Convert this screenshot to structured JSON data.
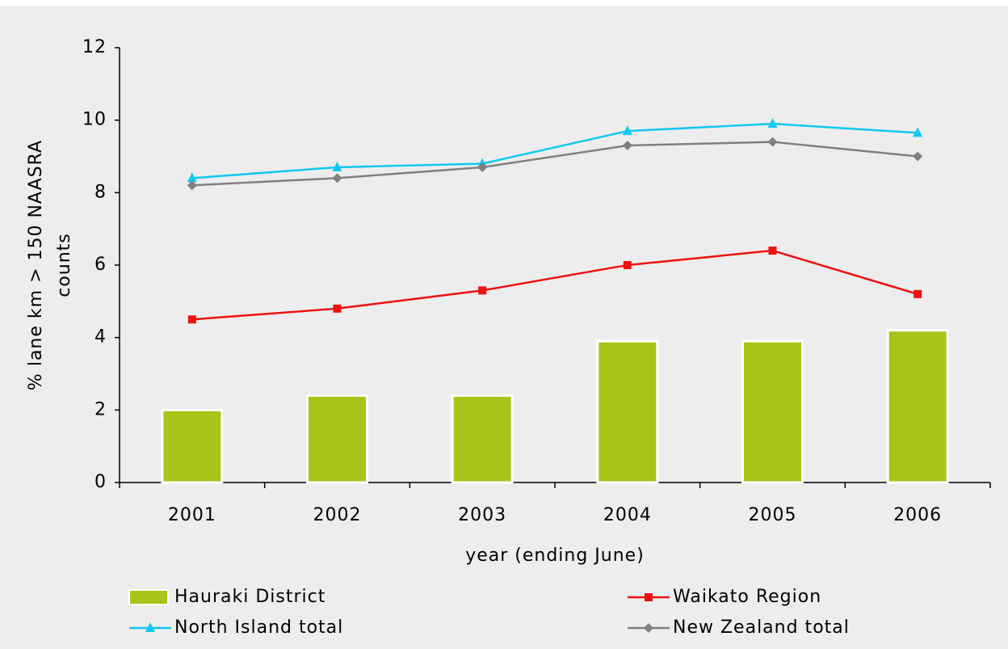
{
  "chart_data": {
    "type": "bar",
    "xlabel": "year (ending June)",
    "ylabel": [
      "% lane km > 150 NAASRA",
      "counts"
    ],
    "categories": [
      "2001",
      "2002",
      "2003",
      "2004",
      "2005",
      "2006"
    ],
    "ylim": [
      0,
      12
    ],
    "yticks": [
      0,
      2,
      4,
      6,
      8,
      10,
      12
    ],
    "series": [
      {
        "name": "Hauraki District",
        "type": "bar",
        "color": "#aac318",
        "values": [
          2.0,
          2.4,
          2.4,
          3.9,
          3.9,
          4.2
        ]
      },
      {
        "name": "Waikato Region",
        "type": "line",
        "marker": "square",
        "color": "#ee1111",
        "values": [
          4.5,
          4.8,
          5.3,
          6.0,
          6.4,
          5.2
        ]
      },
      {
        "name": "North Island total",
        "type": "line",
        "marker": "triangle",
        "color": "#11c8f0",
        "values": [
          8.4,
          8.7,
          8.8,
          9.7,
          9.9,
          9.65
        ]
      },
      {
        "name": "New Zealand total",
        "type": "line",
        "marker": "diamond",
        "color": "#808080",
        "values": [
          8.2,
          8.4,
          8.7,
          9.3,
          9.4,
          9.0
        ]
      }
    ]
  }
}
